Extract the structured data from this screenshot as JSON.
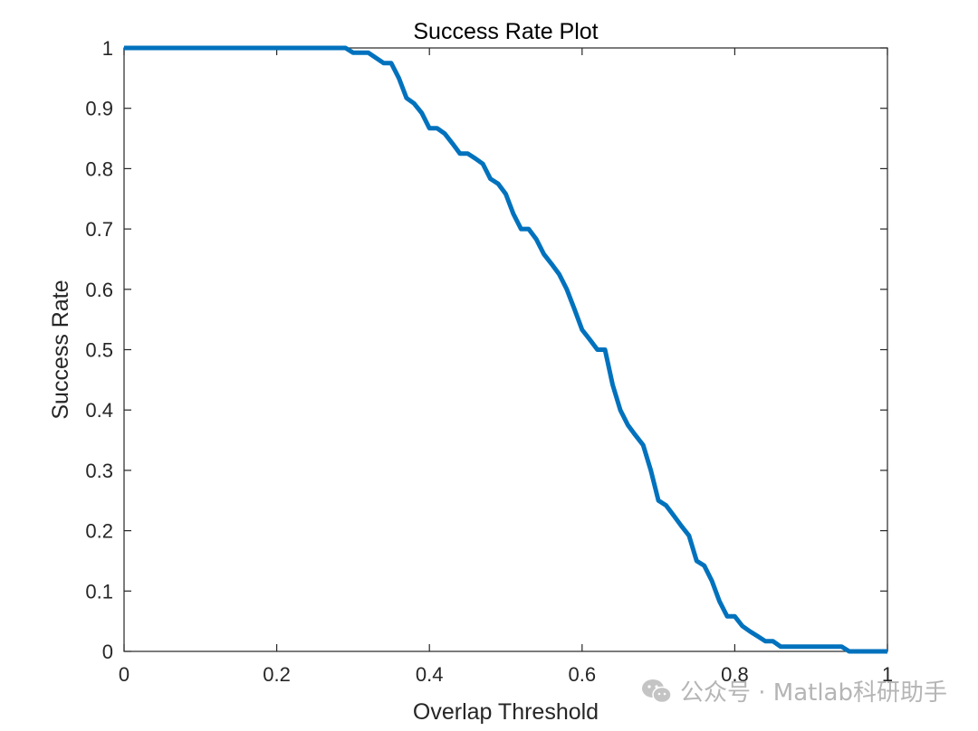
{
  "colors": {
    "line": "#0072BD",
    "axis": "#262626",
    "background": "#ffffff",
    "watermark": "#b5b5b5"
  },
  "watermark": {
    "text": "公众号 · Matlab科研助手",
    "icon": "wechat-icon"
  },
  "chart_data": {
    "type": "line",
    "title": "Success Rate Plot",
    "xlabel": "Overlap Threshold",
    "ylabel": "Success Rate",
    "xlim": [
      0,
      1
    ],
    "ylim": [
      0,
      1
    ],
    "xticks": [
      0,
      0.2,
      0.4,
      0.6,
      0.8,
      1
    ],
    "xtick_labels": [
      "0",
      "0.2",
      "0.4",
      "0.6",
      "0.8",
      "1"
    ],
    "yticks": [
      0,
      0.1,
      0.2,
      0.3,
      0.4,
      0.5,
      0.6,
      0.7,
      0.8,
      0.9,
      1
    ],
    "ytick_labels": [
      "0",
      "0.1",
      "0.2",
      "0.3",
      "0.4",
      "0.5",
      "0.6",
      "0.7",
      "0.8",
      "0.9",
      "1"
    ],
    "grid": false,
    "series": [
      {
        "name": "Success Rate",
        "x": [
          0,
          0.29,
          0.3,
          0.32,
          0.34,
          0.35,
          0.36,
          0.37,
          0.38,
          0.39,
          0.4,
          0.41,
          0.42,
          0.43,
          0.44,
          0.45,
          0.46,
          0.47,
          0.48,
          0.49,
          0.5,
          0.51,
          0.52,
          0.53,
          0.54,
          0.55,
          0.56,
          0.57,
          0.58,
          0.59,
          0.6,
          0.61,
          0.62,
          0.63,
          0.64,
          0.65,
          0.66,
          0.67,
          0.68,
          0.69,
          0.7,
          0.71,
          0.72,
          0.73,
          0.74,
          0.75,
          0.76,
          0.77,
          0.78,
          0.79,
          0.8,
          0.81,
          0.82,
          0.83,
          0.84,
          0.85,
          0.86,
          0.9,
          0.94,
          0.95,
          1.0
        ],
        "y": [
          1,
          1,
          0.992,
          0.992,
          0.975,
          0.975,
          0.95,
          0.917,
          0.908,
          0.892,
          0.867,
          0.867,
          0.858,
          0.842,
          0.825,
          0.825,
          0.817,
          0.808,
          0.783,
          0.775,
          0.758,
          0.725,
          0.7,
          0.7,
          0.683,
          0.658,
          0.642,
          0.625,
          0.6,
          0.567,
          0.533,
          0.517,
          0.5,
          0.5,
          0.442,
          0.4,
          0.375,
          0.358,
          0.342,
          0.3,
          0.25,
          0.242,
          0.225,
          0.208,
          0.192,
          0.15,
          0.142,
          0.117,
          0.083,
          0.058,
          0.058,
          0.042,
          0.033,
          0.025,
          0.017,
          0.017,
          0.008,
          0.008,
          0.008,
          0,
          0
        ]
      }
    ]
  }
}
